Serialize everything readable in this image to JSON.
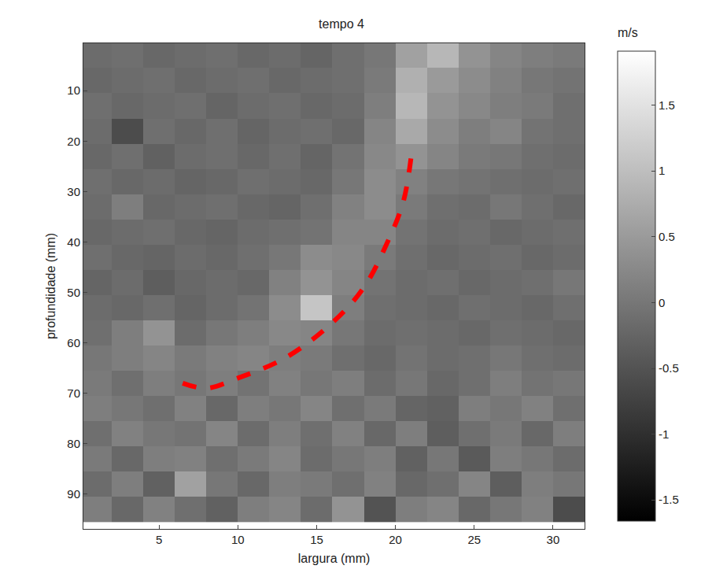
{
  "chart_data": {
    "type": "heatmap",
    "title": "tempo 4",
    "x_label": "largura (mm)",
    "y_label": "profundidade (mm)",
    "x": [
      1,
      3,
      5,
      7,
      9,
      11,
      13,
      15,
      17,
      19,
      21,
      23,
      25,
      27,
      29,
      31
    ],
    "y": [
      3,
      8,
      13,
      18,
      23,
      28,
      33,
      38,
      43,
      48,
      53,
      58,
      63,
      68,
      73,
      78,
      83,
      88,
      93
    ],
    "cells": [
      [
        -0.15,
        -0.1,
        -0.2,
        -0.15,
        -0.1,
        -0.2,
        -0.15,
        -0.25,
        -0.1,
        0.0,
        0.6,
        0.9,
        0.4,
        0.2,
        0.1,
        0.05
      ],
      [
        -0.2,
        -0.15,
        -0.1,
        -0.2,
        -0.15,
        -0.1,
        -0.2,
        -0.15,
        -0.1,
        0.05,
        0.8,
        0.5,
        0.3,
        0.15,
        0.0,
        -0.05
      ],
      [
        -0.1,
        -0.2,
        -0.15,
        -0.1,
        -0.25,
        -0.15,
        -0.1,
        -0.2,
        -0.15,
        0.1,
        0.9,
        0.4,
        0.25,
        0.1,
        0.05,
        -0.1
      ],
      [
        -0.15,
        -0.6,
        -0.1,
        -0.2,
        -0.1,
        -0.25,
        -0.15,
        -0.1,
        -0.2,
        0.2,
        0.7,
        0.3,
        0.1,
        0.2,
        -0.05,
        -0.1
      ],
      [
        -0.2,
        -0.1,
        -0.3,
        -0.15,
        -0.1,
        -0.2,
        -0.1,
        -0.25,
        -0.05,
        0.25,
        0.4,
        0.2,
        0.05,
        0.0,
        -0.1,
        -0.15
      ],
      [
        -0.1,
        -0.2,
        -0.15,
        -0.25,
        -0.2,
        -0.1,
        -0.15,
        -0.2,
        0.0,
        0.3,
        0.15,
        0.0,
        -0.05,
        -0.1,
        -0.15,
        -0.1
      ],
      [
        -0.15,
        0.1,
        -0.2,
        -0.15,
        -0.1,
        -0.2,
        -0.25,
        -0.1,
        0.15,
        0.3,
        0.05,
        -0.1,
        -0.15,
        0.0,
        -0.1,
        -0.2
      ],
      [
        -0.2,
        -0.15,
        -0.1,
        -0.2,
        -0.25,
        -0.15,
        -0.1,
        -0.05,
        0.2,
        0.2,
        -0.05,
        -0.15,
        -0.1,
        -0.2,
        -0.15,
        -0.1
      ],
      [
        -0.1,
        -0.2,
        -0.25,
        -0.15,
        -0.2,
        -0.1,
        0.0,
        0.3,
        0.25,
        0.05,
        -0.1,
        -0.2,
        -0.15,
        -0.1,
        -0.2,
        -0.15
      ],
      [
        -0.25,
        -0.15,
        -0.35,
        -0.2,
        -0.15,
        -0.2,
        0.15,
        0.4,
        0.2,
        -0.05,
        -0.15,
        -0.1,
        -0.2,
        -0.15,
        -0.1,
        0.0
      ],
      [
        -0.15,
        -0.2,
        -0.1,
        -0.25,
        -0.15,
        -0.05,
        0.3,
        1.1,
        0.1,
        -0.1,
        -0.15,
        -0.2,
        -0.1,
        -0.15,
        -0.2,
        -0.1
      ],
      [
        -0.1,
        0.1,
        0.4,
        -0.15,
        0.0,
        0.1,
        0.25,
        0.2,
        0.0,
        -0.15,
        -0.1,
        -0.15,
        -0.2,
        -0.1,
        -0.15,
        -0.2
      ],
      [
        0.0,
        0.1,
        0.2,
        0.05,
        0.15,
        0.2,
        0.1,
        0.05,
        -0.1,
        -0.2,
        -0.05,
        -0.15,
        -0.1,
        0.0,
        -0.1,
        -0.15
      ],
      [
        0.05,
        -0.1,
        0.1,
        0.0,
        0.1,
        -0.05,
        0.15,
        0.0,
        0.1,
        -0.15,
        0.0,
        -0.2,
        -0.1,
        0.1,
        -0.05,
        0.0
      ],
      [
        0.1,
        0.0,
        -0.1,
        0.15,
        -0.2,
        0.1,
        0.0,
        0.2,
        -0.1,
        0.05,
        -0.25,
        -0.3,
        0.1,
        0.0,
        0.15,
        -0.1
      ],
      [
        -0.1,
        0.15,
        0.0,
        -0.05,
        0.2,
        -0.15,
        0.1,
        -0.1,
        0.15,
        -0.2,
        0.1,
        -0.35,
        -0.1,
        0.05,
        -0.2,
        0.1
      ],
      [
        0.05,
        -0.2,
        0.1,
        0.15,
        -0.1,
        0.05,
        0.2,
        -0.15,
        0.0,
        0.1,
        -0.3,
        0.0,
        -0.4,
        0.1,
        0.0,
        -0.15
      ],
      [
        -0.15,
        0.1,
        -0.3,
        0.6,
        0.0,
        -0.2,
        0.1,
        0.05,
        -0.1,
        0.15,
        -0.2,
        -0.1,
        0.2,
        -0.35,
        0.1,
        0.0
      ],
      [
        0.1,
        -0.2,
        0.15,
        -0.1,
        -0.3,
        0.1,
        0.2,
        -0.15,
        0.4,
        -0.5,
        0.1,
        0.2,
        -0.2,
        0.0,
        0.15,
        -0.6
      ]
    ],
    "colors": [
      "#000000",
      "#ffffff"
    ],
    "colorbar": {
      "label": "m/s",
      "range": [
        -1.66,
        1.91
      ],
      "ticks": [
        -1.5,
        -1,
        -0.5,
        0,
        0.5,
        1,
        1.5
      ]
    },
    "xlim": [
      0.2,
      32
    ],
    "ylim": [
      96.9,
      0.6
    ],
    "xticks": [
      5,
      10,
      15,
      20,
      25,
      30
    ],
    "yticks": [
      10,
      20,
      30,
      40,
      50,
      60,
      70,
      80,
      90
    ],
    "curve": {
      "x": [
        6.5,
        8,
        10,
        13,
        16,
        18,
        19.5,
        20.5,
        21
      ],
      "y": [
        68,
        69,
        67,
        63,
        56,
        49,
        40,
        32,
        23
      ],
      "color": "#ff0000",
      "line_style": "dashed"
    }
  }
}
